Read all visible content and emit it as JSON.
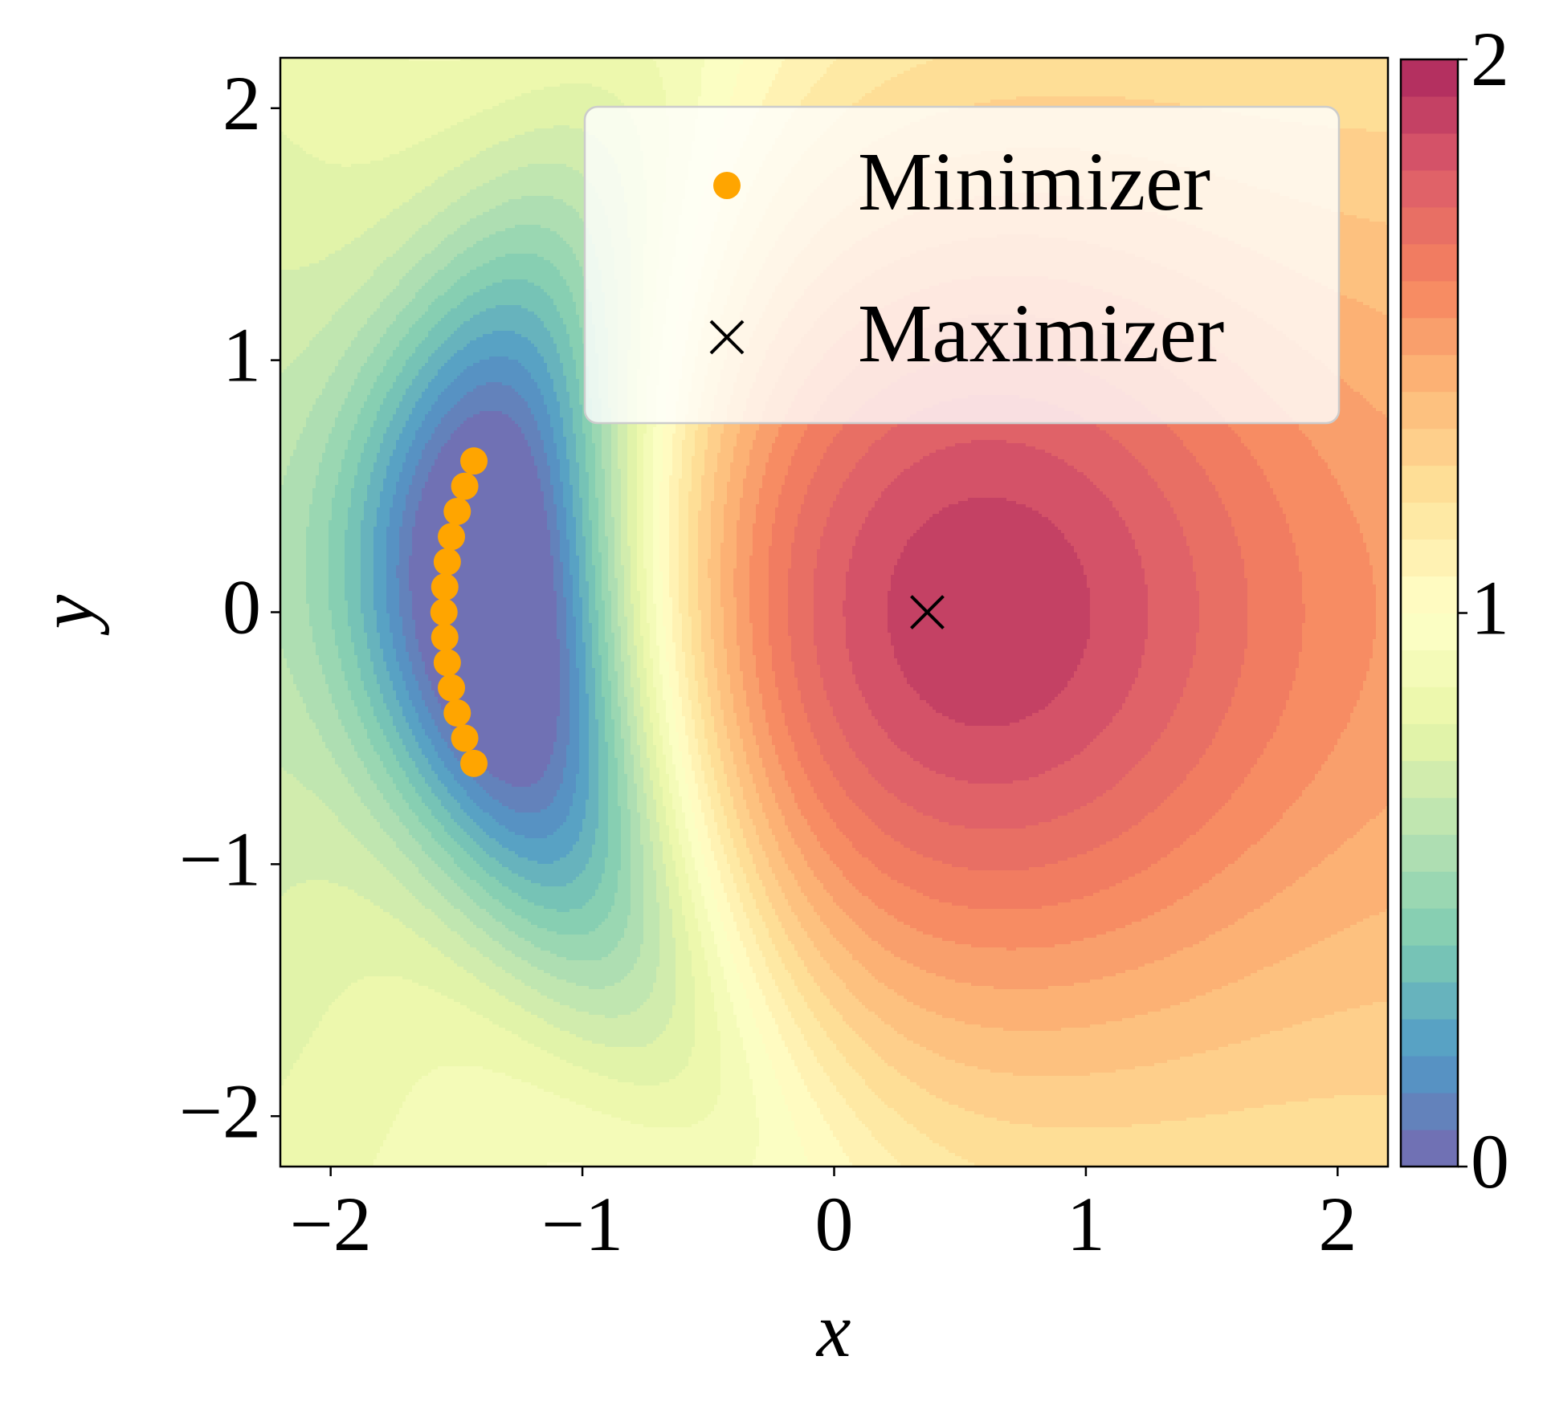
{
  "chart_data": {
    "type": "contour",
    "xlabel": "x",
    "ylabel": "y",
    "xlim": [
      -2.2,
      2.2
    ],
    "ylim": [
      -2.2,
      2.2
    ],
    "xticks": [
      {
        "value": -2,
        "label": "−2"
      },
      {
        "value": -1,
        "label": "−1"
      },
      0,
      1,
      2
    ],
    "yticks": [
      {
        "value": -2,
        "label": "−2"
      },
      {
        "value": -1,
        "label": "−1"
      },
      0,
      1,
      2
    ],
    "colormap": "Spectral_r",
    "levels": 30,
    "clim": [
      0,
      2
    ],
    "cticks": [
      0,
      1,
      2
    ],
    "legend": "upper right",
    "series": [
      {
        "name": "Minimizer",
        "marker": "o",
        "color": "#ffa500",
        "x": [
          -1.431,
          -1.4675,
          -1.4972,
          -1.5203,
          -1.5368,
          -1.5467,
          -1.55,
          -1.5467,
          -1.5368,
          -1.5203,
          -1.4972,
          -1.4675,
          -1.431
        ],
        "y": [
          -0.6,
          -0.5,
          -0.4,
          -0.3,
          -0.2,
          -0.1,
          0,
          0.1,
          0.2,
          0.3,
          0.4,
          0.5,
          0.6
        ]
      },
      {
        "name": "Maximizer",
        "marker": "x",
        "color": "#000000",
        "x": [
          0.37
        ],
        "y": [
          0
        ]
      }
    ]
  }
}
